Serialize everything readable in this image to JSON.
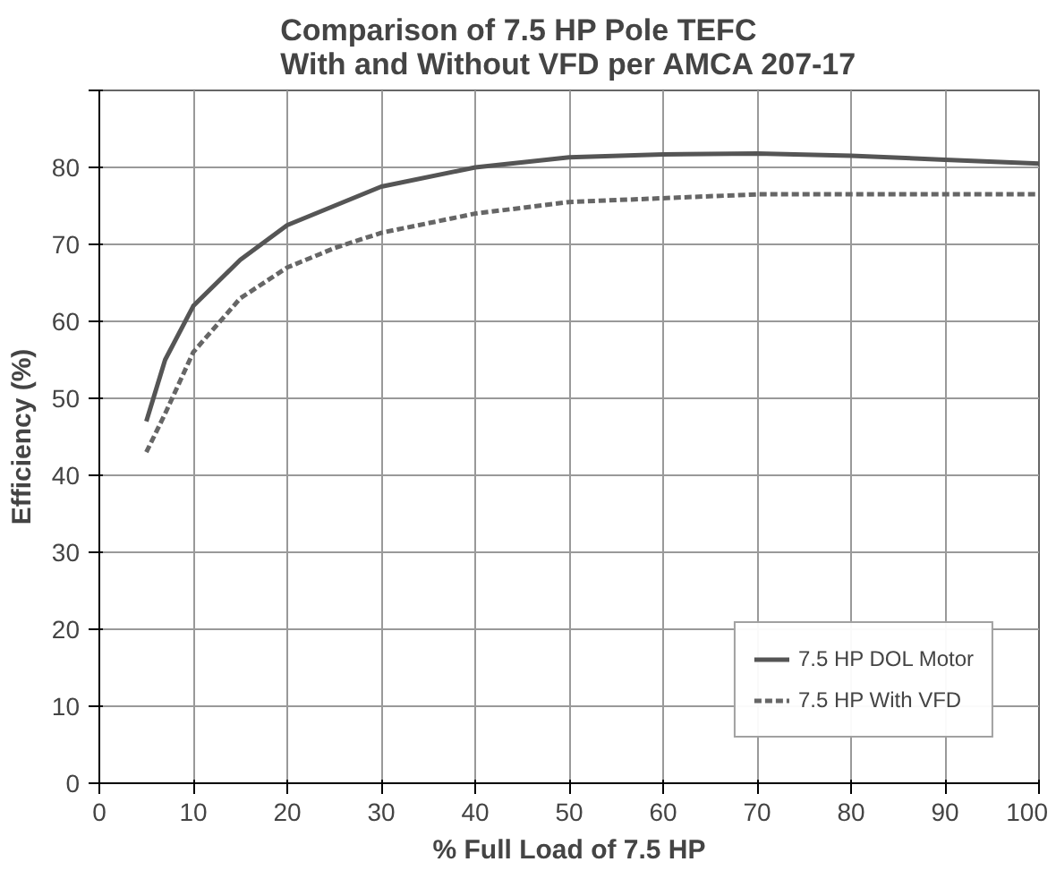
{
  "chart_data": {
    "type": "line",
    "title": "Comparison of 7.5 HP Pole TEFC\nWith and Without VFD per AMCA 207-17",
    "xlabel": "% Full Load of 7.5 HP",
    "ylabel": "Efficiency (%)",
    "xlim": [
      0,
      100
    ],
    "ylim": [
      0,
      90
    ],
    "xticks": [
      0,
      10,
      20,
      30,
      40,
      50,
      60,
      70,
      80,
      90,
      100
    ],
    "yticks": [
      0,
      10,
      20,
      30,
      40,
      50,
      60,
      70,
      80,
      {
        "value": 90,
        "label": null
      }
    ],
    "grid": true,
    "legend": "bottom right",
    "series": [
      {
        "name": "7.5 HP DOL Motor",
        "color": "#555555",
        "line_style": "solid",
        "x": [
          5,
          7,
          10,
          15,
          20,
          25,
          30,
          40,
          50,
          60,
          70,
          80,
          90,
          100
        ],
        "values": [
          47,
          55,
          62,
          68,
          72.5,
          75,
          77.5,
          80,
          81.3,
          81.7,
          81.8,
          81.5,
          81,
          80.5
        ]
      },
      {
        "name": "7.5 HP With VFD",
        "color": "#666666",
        "line_style": "dashed",
        "x": [
          5,
          7,
          10,
          15,
          20,
          25,
          30,
          40,
          50,
          60,
          70,
          80,
          90,
          100
        ],
        "values": [
          43,
          48,
          56,
          63,
          67,
          69.5,
          71.5,
          74,
          75.5,
          76,
          76.5,
          76.5,
          76.5,
          76.5
        ]
      }
    ]
  }
}
